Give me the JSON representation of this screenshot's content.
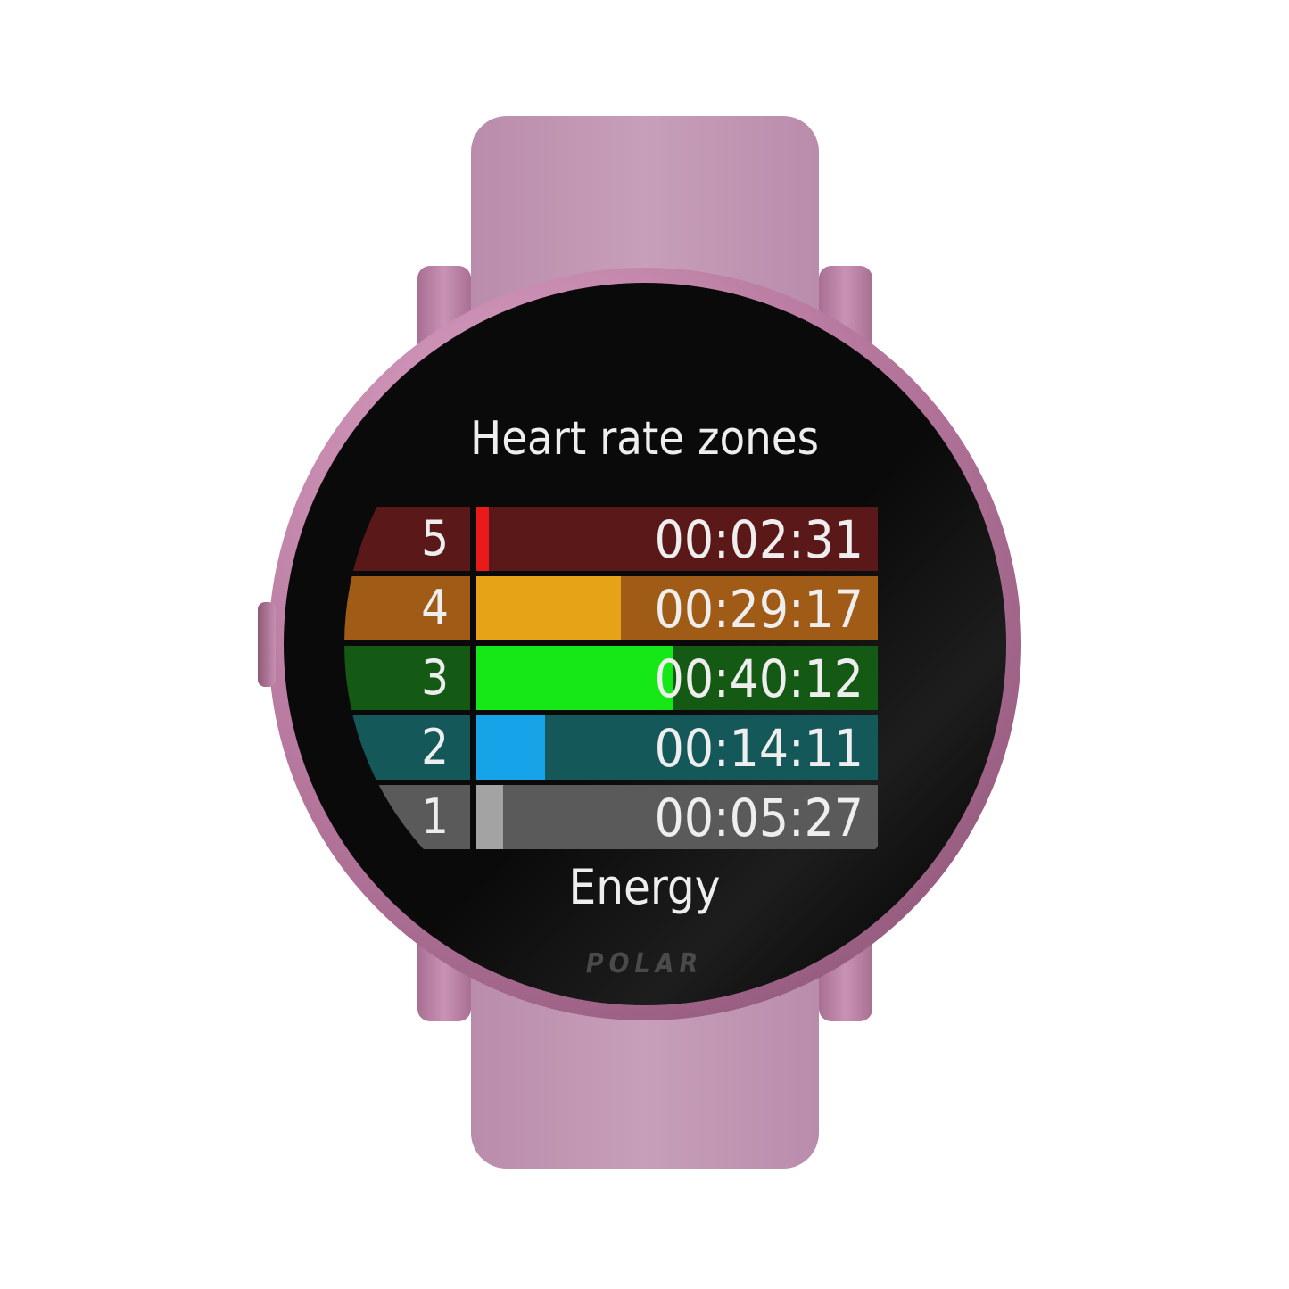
{
  "screen": {
    "title": "Heart rate zones",
    "footer": "Energy",
    "brand_logo": "POLAR"
  },
  "zones": [
    {
      "zone": "5",
      "time": "00:02:31",
      "fill": 0.03,
      "bg": "#5a1818",
      "bar": "#e81a1a"
    },
    {
      "zone": "4",
      "time": "00:29:17",
      "fill": 0.36,
      "bg": "#a05c16",
      "bar": "#e6a318"
    },
    {
      "zone": "3",
      "time": "00:40:12",
      "fill": 0.49,
      "bg": "#155a14",
      "bar": "#16e818"
    },
    {
      "zone": "2",
      "time": "00:14:11",
      "fill": 0.17,
      "bg": "#15585a",
      "bar": "#16a3e8"
    },
    {
      "zone": "1",
      "time": "00:05:27",
      "fill": 0.067,
      "bg": "#5a5a5a",
      "bar": "#a3a3a3"
    }
  ]
}
